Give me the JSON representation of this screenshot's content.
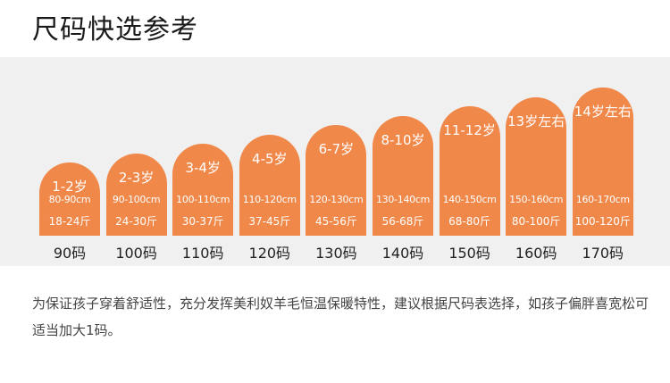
{
  "title": "尺码快选参考",
  "accent_color": "#f0884a",
  "sizes": [
    {
      "age": "1-2岁",
      "height": "80-90cm",
      "weight": "18-24斤",
      "size": "90码"
    },
    {
      "age": "2-3岁",
      "height": "90-100cm",
      "weight": "24-30斤",
      "size": "100码"
    },
    {
      "age": "3-4岁",
      "height": "100-110cm",
      "weight": "30-37斤",
      "size": "110码"
    },
    {
      "age": "4-5岁",
      "height": "110-120cm",
      "weight": "37-45斤",
      "size": "120码"
    },
    {
      "age": "6-7岁",
      "height": "120-130cm",
      "weight": "45-56斤",
      "size": "130码"
    },
    {
      "age": "8-10岁",
      "height": "130-140cm",
      "weight": "56-68斤",
      "size": "140码"
    },
    {
      "age": "11-12岁",
      "height": "140-150cm",
      "weight": "68-80斤",
      "size": "150码"
    },
    {
      "age": "13岁左右",
      "height": "150-160cm",
      "weight": "80-100斤",
      "size": "160码"
    },
    {
      "age": "14岁左右",
      "height": "160-170cm",
      "weight": "100-120斤",
      "size": "170码"
    }
  ],
  "note": "为保证孩子穿着舒适性，充分发挥美利奴羊毛恒温保暖特性，建议根据尺码表选择，如孩子偏胖喜宽松可适当加大1码。"
}
